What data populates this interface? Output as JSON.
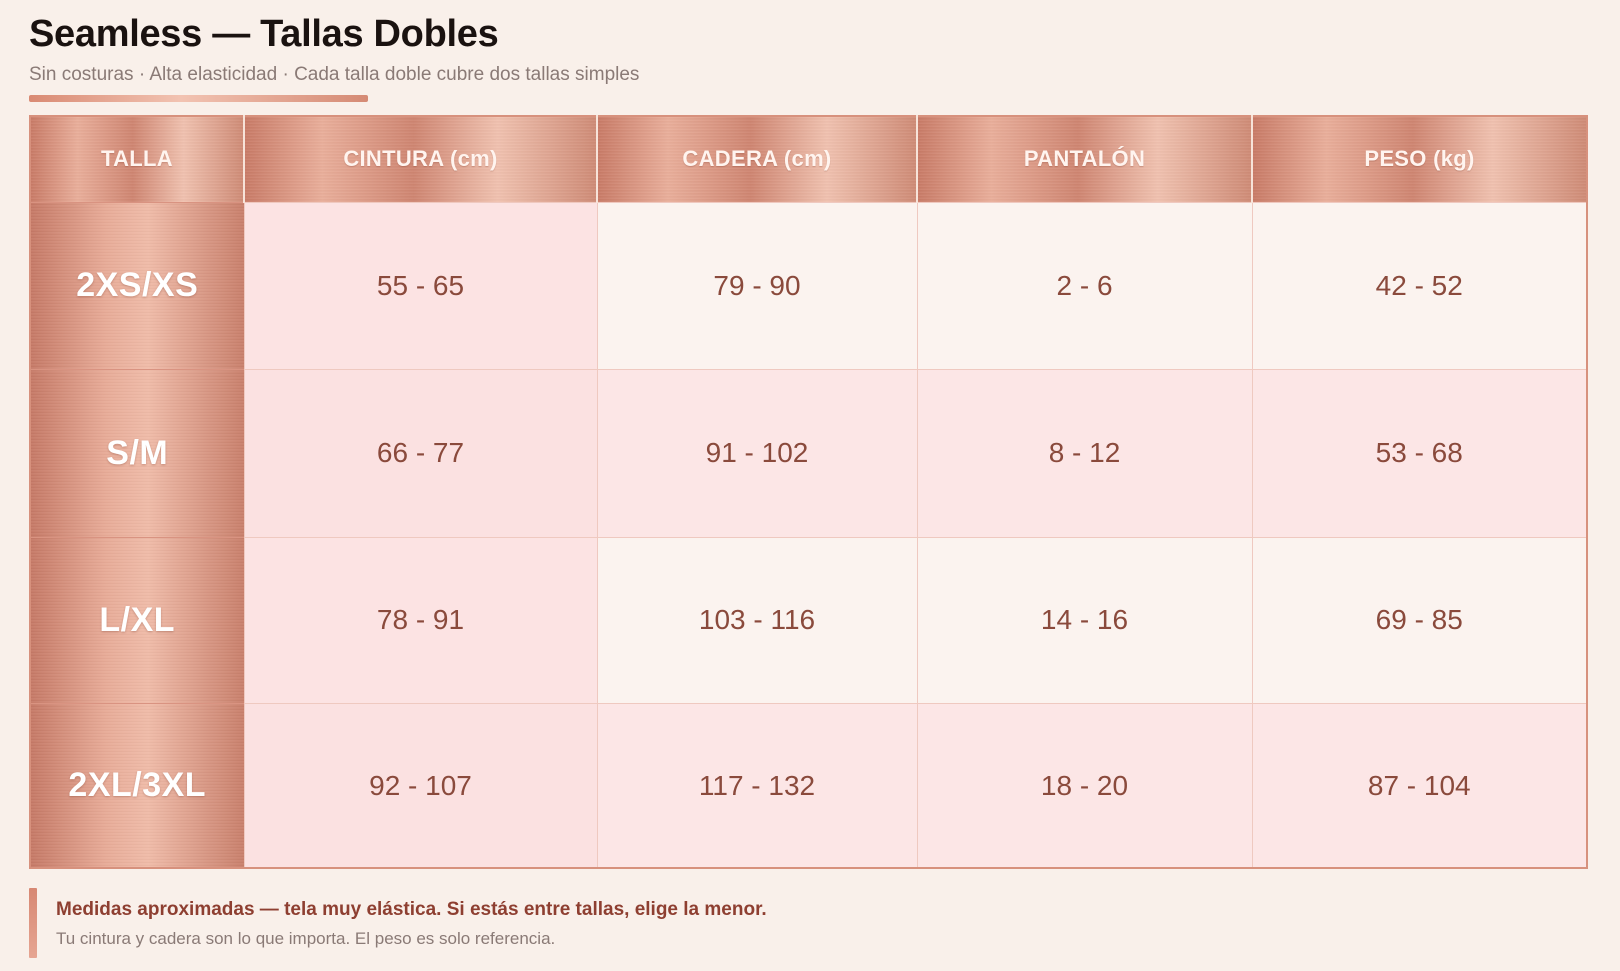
{
  "header": {
    "title": "Seamless — Tallas Dobles",
    "subtitle": "Sin costuras · Alta elasticidad · Cada talla doble cubre dos tallas simples"
  },
  "table": {
    "columns": [
      "TALLA",
      "CINTURA (cm)",
      "CADERA (cm)",
      "PANTALÓN",
      "PESO (kg)"
    ],
    "rows": [
      {
        "size": "2XS/XS",
        "cintura": "55 - 65",
        "cadera": "79 - 90",
        "pantalon": "2 - 6",
        "peso": "42 - 52"
      },
      {
        "size": "S/M",
        "cintura": "66 - 77",
        "cadera": "91 - 102",
        "pantalon": "8 - 12",
        "peso": "53 - 68"
      },
      {
        "size": "L/XL",
        "cintura": "78 - 91",
        "cadera": "103 - 116",
        "pantalon": "14 - 16",
        "peso": "69 - 85"
      },
      {
        "size": "2XL/3XL",
        "cintura": "92 - 107",
        "cadera": "117 - 132",
        "pantalon": "18 - 20",
        "peso": "87 - 104"
      }
    ]
  },
  "footnote": {
    "main": "Medidas aproximadas — tela muy elástica. Si estás entre tallas, elige la menor.",
    "sub": "Tu cintura y cadera son lo que importa. El peso es solo referencia."
  },
  "colors": {
    "accent": "#d98a73",
    "value_text": "#8a4a3c",
    "background": "#f9f0ea"
  }
}
